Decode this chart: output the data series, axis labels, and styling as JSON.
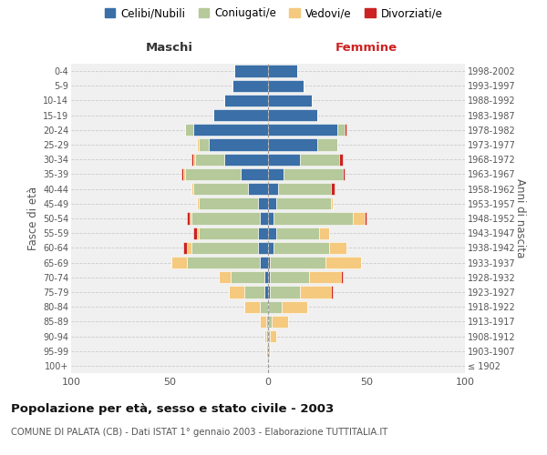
{
  "age_groups": [
    "100+",
    "95-99",
    "90-94",
    "85-89",
    "80-84",
    "75-79",
    "70-74",
    "65-69",
    "60-64",
    "55-59",
    "50-54",
    "45-49",
    "40-44",
    "35-39",
    "30-34",
    "25-29",
    "20-24",
    "15-19",
    "10-14",
    "5-9",
    "0-4"
  ],
  "birth_years": [
    "≤ 1902",
    "1903-1907",
    "1908-1912",
    "1913-1917",
    "1918-1922",
    "1923-1927",
    "1928-1932",
    "1933-1937",
    "1938-1942",
    "1943-1947",
    "1948-1952",
    "1953-1957",
    "1958-1962",
    "1963-1967",
    "1968-1972",
    "1973-1977",
    "1978-1982",
    "1983-1987",
    "1988-1992",
    "1993-1997",
    "1998-2002"
  ],
  "maschi": {
    "celibi": [
      0,
      0,
      0,
      0,
      0,
      2,
      2,
      4,
      5,
      5,
      4,
      5,
      10,
      14,
      22,
      30,
      38,
      28,
      22,
      18,
      17
    ],
    "coniugati": [
      0,
      0,
      1,
      1,
      4,
      10,
      17,
      37,
      34,
      30,
      35,
      30,
      28,
      28,
      15,
      5,
      4,
      0,
      0,
      0,
      0
    ],
    "vedovi": [
      0,
      1,
      1,
      3,
      8,
      8,
      6,
      8,
      2,
      1,
      1,
      1,
      1,
      1,
      1,
      1,
      0,
      0,
      0,
      0,
      0
    ],
    "divorziati": [
      0,
      0,
      0,
      0,
      0,
      0,
      0,
      0,
      2,
      2,
      1,
      0,
      0,
      1,
      1,
      0,
      0,
      0,
      0,
      0,
      0
    ]
  },
  "femmine": {
    "nubili": [
      0,
      0,
      0,
      0,
      0,
      1,
      1,
      1,
      3,
      4,
      3,
      4,
      5,
      8,
      16,
      25,
      35,
      25,
      22,
      18,
      15
    ],
    "coniugate": [
      0,
      0,
      1,
      2,
      7,
      15,
      20,
      28,
      28,
      22,
      40,
      28,
      27,
      30,
      20,
      10,
      4,
      0,
      0,
      0,
      0
    ],
    "vedove": [
      0,
      1,
      3,
      8,
      13,
      16,
      16,
      18,
      9,
      5,
      6,
      1,
      0,
      0,
      0,
      0,
      0,
      0,
      0,
      0,
      0
    ],
    "divorziate": [
      0,
      0,
      0,
      0,
      0,
      1,
      1,
      0,
      0,
      0,
      1,
      0,
      2,
      1,
      2,
      0,
      1,
      0,
      0,
      0,
      0
    ]
  },
  "colors": {
    "celibi": "#3a6fa8",
    "coniugati": "#b5c99a",
    "vedovi": "#f5c97e",
    "divorziati": "#cc2222"
  },
  "xlim": 100,
  "title": "Popolazione per età, sesso e stato civile - 2003",
  "subtitle": "COMUNE DI PALATA (CB) - Dati ISTAT 1° gennaio 2003 - Elaborazione TUTTITALIA.IT",
  "ylabel_left": "Fasce di età",
  "ylabel_right": "Anni di nascita",
  "xlabel_left": "Maschi",
  "xlabel_right": "Femmine",
  "legend_labels": [
    "Celibi/Nubili",
    "Coniugati/e",
    "Vedovi/e",
    "Divorziati/e"
  ],
  "background_color": "#ffffff",
  "plot_bg_color": "#f0f0f0",
  "grid_color": "#cccccc"
}
